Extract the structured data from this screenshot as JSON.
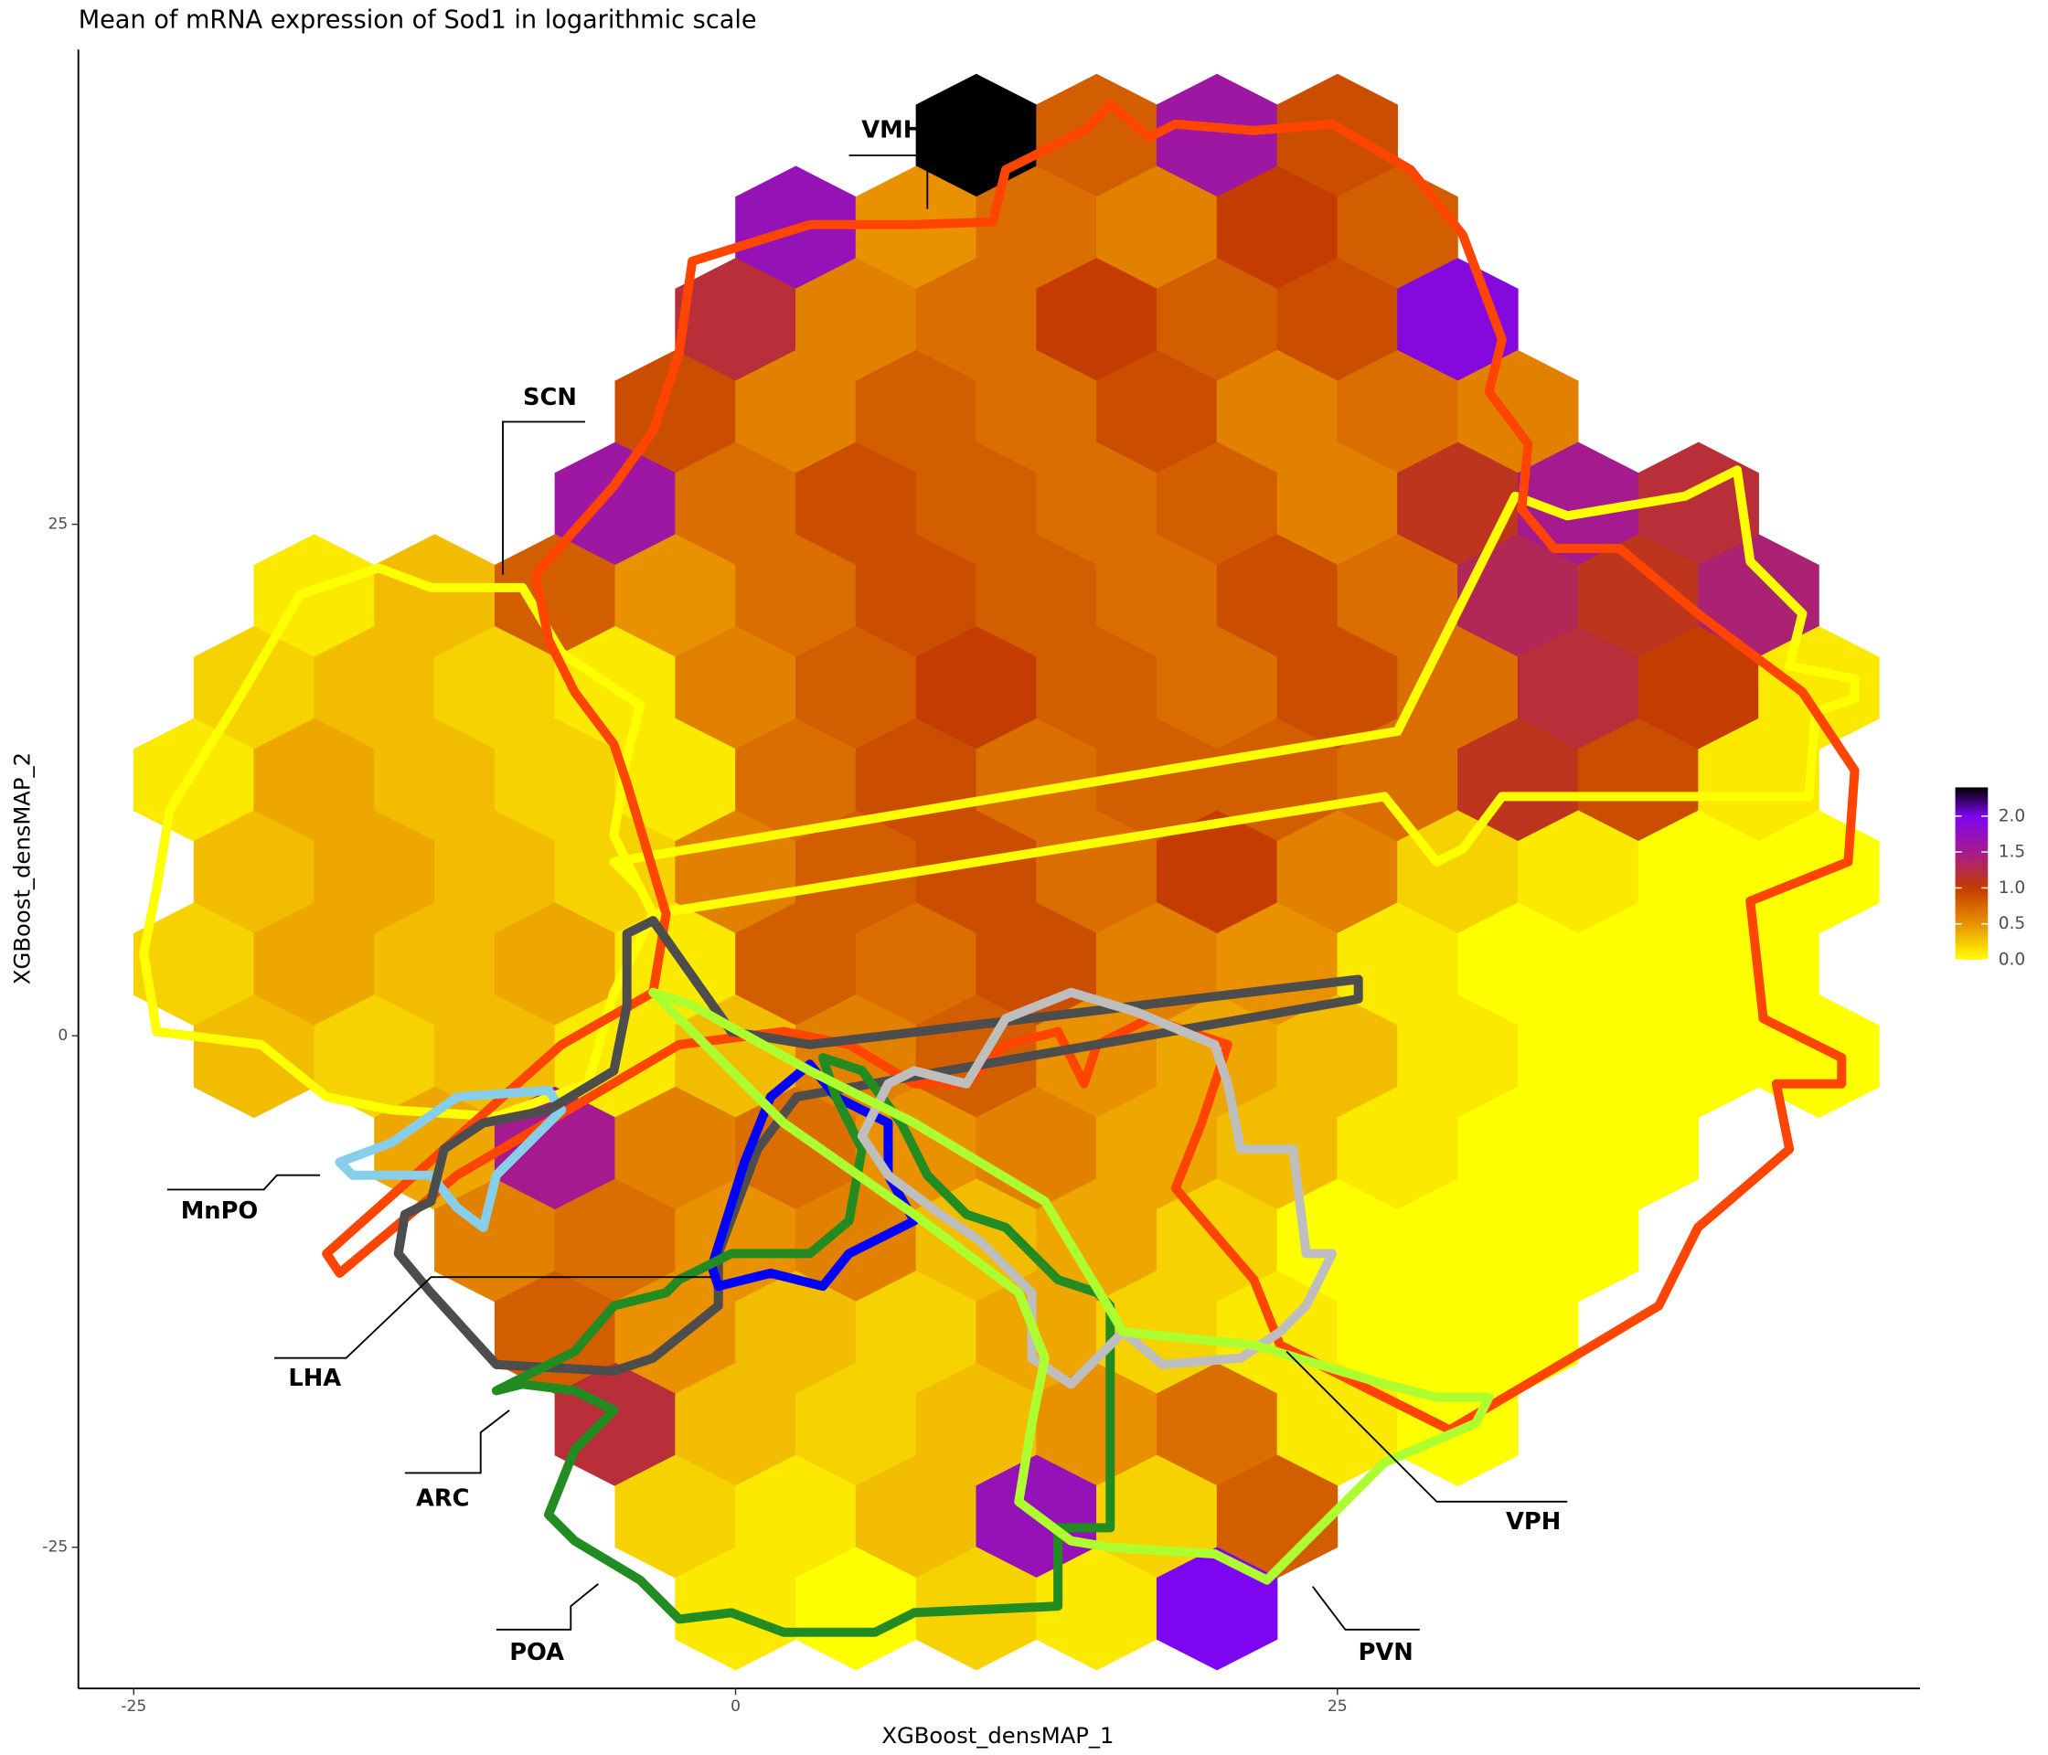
{
  "chart_data": {
    "type": "hexbin",
    "title": "Mean of mRNA expression of Sod1 in logarithmic scale",
    "x_label": "XGBoost_densMAP_1",
    "y_label": "XGBoost_densMAP_2",
    "xlim": [
      -27.3,
      49.2
    ],
    "ylim": [
      -31.9,
      48.2
    ],
    "xticks": [
      -25,
      0,
      25
    ],
    "yticks": [
      -25,
      0,
      25
    ],
    "colorscale": [
      {
        "value": 0,
        "color": "#ffff00"
      },
      {
        "value": 0.5,
        "color": "#e99100"
      },
      {
        "value": 1,
        "color": "#c43c00"
      },
      {
        "value": 1.5,
        "color": "#a51b8f"
      },
      {
        "value": 2,
        "color": "#7d05f0"
      },
      {
        "value": 2.4,
        "color": "#000000"
      }
    ],
    "colorbar_lim": [
      0,
      2.4
    ],
    "colorbar_ticks": [
      {
        "value": 0,
        "label": "0.0"
      },
      0.5,
      {
        "value": 1,
        "label": "1.0"
      },
      1.5,
      {
        "value": 2,
        "label": "2.0"
      }
    ],
    "annotations": [
      "VMH",
      "SCN",
      "MnPO",
      "LHA",
      "ARC",
      "POA",
      "VPH",
      "PVN"
    ],
    "hex_rows": [
      {
        "y": 44,
        "x": [
          10,
          15,
          20,
          25
        ],
        "values": [
          2.4,
          0.8,
          1.6,
          0.9
        ]
      },
      {
        "y": 39.5,
        "x": [
          2.5,
          7.5,
          12.5,
          17.5,
          22.5,
          27.5
        ],
        "values": [
          1.7,
          0.5,
          0.7,
          0.6,
          1.0,
          0.8
        ]
      },
      {
        "y": 35,
        "x": [
          0,
          5,
          10,
          15,
          20,
          25,
          30
        ],
        "values": [
          1.2,
          0.6,
          0.7,
          1.0,
          0.8,
          0.9,
          1.9
        ]
      },
      {
        "y": 30.5,
        "x": [
          -2.5,
          2.5,
          7.5,
          12.5,
          17.5,
          22.5,
          27.5,
          32.5
        ],
        "values": [
          0.9,
          0.6,
          0.8,
          0.7,
          0.9,
          0.6,
          0.7,
          0.6
        ]
      },
      {
        "y": 26,
        "x": [
          -5,
          0,
          5,
          10,
          15,
          20,
          25,
          30,
          35,
          40
        ],
        "values": [
          1.6,
          0.7,
          0.9,
          0.8,
          0.7,
          0.8,
          0.6,
          1.1,
          1.5,
          1.2
        ]
      },
      {
        "y": 21.5,
        "x": [
          -17.5,
          -12.5,
          -7.5,
          -2.5,
          2.5,
          7.5,
          12.5,
          17.5,
          22.5,
          27.5,
          32.5,
          37.5,
          42.5
        ],
        "values": [
          0.1,
          0.3,
          0.8,
          0.5,
          0.7,
          0.9,
          0.8,
          0.7,
          0.9,
          0.7,
          1.3,
          1.1,
          1.4
        ]
      },
      {
        "y": 17,
        "x": [
          -20,
          -15,
          -10,
          -5,
          0,
          5,
          10,
          15,
          20,
          25,
          30,
          35,
          40,
          45
        ],
        "values": [
          0.2,
          0.3,
          0.2,
          0.1,
          0.6,
          0.8,
          1.0,
          0.8,
          0.7,
          0.9,
          0.7,
          1.2,
          1.0,
          0.1
        ]
      },
      {
        "y": 12.5,
        "x": [
          -22.5,
          -17.5,
          -12.5,
          -7.5,
          -2.5,
          2.5,
          7.5,
          12.5,
          17.5,
          22.5,
          27.5,
          32.5,
          37.5,
          42.5
        ],
        "values": [
          0.1,
          0.4,
          0.3,
          0.2,
          0.1,
          0.7,
          0.9,
          0.7,
          0.8,
          0.8,
          0.7,
          1.1,
          0.9,
          0.1
        ]
      },
      {
        "y": 8,
        "x": [
          -20,
          -15,
          -10,
          -5,
          0,
          5,
          10,
          15,
          20,
          25,
          30,
          35,
          40,
          45
        ],
        "values": [
          0.3,
          0.4,
          0.3,
          0.2,
          0.6,
          0.8,
          0.9,
          0.7,
          1.0,
          0.6,
          0.2,
          0.1,
          0.0,
          0.0
        ]
      },
      {
        "y": 3.5,
        "x": [
          -22.5,
          -17.5,
          -12.5,
          -7.5,
          -2.5,
          2.5,
          7.5,
          12.5,
          17.5,
          22.5,
          27.5,
          32.5,
          37.5,
          42.5
        ],
        "values": [
          0.2,
          0.4,
          0.3,
          0.4,
          0.1,
          0.8,
          0.7,
          0.9,
          0.6,
          0.5,
          0.1,
          0.0,
          0.0,
          0.0
        ]
      },
      {
        "y": -1,
        "x": [
          -20,
          -15,
          -10,
          -5,
          0,
          5,
          10,
          15,
          20,
          25,
          30,
          35,
          40,
          45
        ],
        "values": [
          0.3,
          0.2,
          0.3,
          0.1,
          0.3,
          0.6,
          0.8,
          0.5,
          0.4,
          0.3,
          0.1,
          0.0,
          0.0,
          0.0
        ]
      },
      {
        "y": -5.5,
        "x": [
          -12.5,
          -7.5,
          -2.5,
          2.5,
          7.5,
          12.5,
          17.5,
          22.5,
          27.5,
          32.5,
          37.5
        ],
        "values": [
          0.4,
          1.5,
          0.6,
          0.7,
          0.5,
          0.6,
          0.4,
          0.3,
          0.1,
          0.0,
          0.0
        ]
      },
      {
        "y": -10,
        "x": [
          -10,
          -5,
          0,
          5,
          10,
          15,
          20,
          25,
          30,
          35
        ],
        "values": [
          0.6,
          0.7,
          0.5,
          0.6,
          0.3,
          0.4,
          0.2,
          0.0,
          0.0,
          0.0
        ]
      },
      {
        "y": -14.5,
        "x": [
          -7.5,
          -2.5,
          2.5,
          7.5,
          12.5,
          17.5,
          22.5,
          27.5,
          32.5
        ],
        "values": [
          0.8,
          0.5,
          0.3,
          0.2,
          0.4,
          0.2,
          0.1,
          0.0,
          0.0
        ]
      },
      {
        "y": -19,
        "x": [
          -5,
          0,
          5,
          10,
          15,
          20,
          25,
          30
        ],
        "values": [
          1.2,
          0.3,
          0.2,
          0.3,
          0.5,
          0.7,
          0.1,
          0.0
        ]
      },
      {
        "y": -23.5,
        "x": [
          -2.5,
          2.5,
          7.5,
          12.5,
          17.5,
          22.5
        ],
        "values": [
          0.2,
          0.1,
          0.3,
          1.7,
          0.2,
          0.8
        ]
      },
      {
        "y": -28,
        "x": [
          0,
          5,
          10,
          15,
          20
        ],
        "values": [
          0.1,
          0.0,
          0.2,
          0.1,
          2.0
        ]
      }
    ]
  }
}
